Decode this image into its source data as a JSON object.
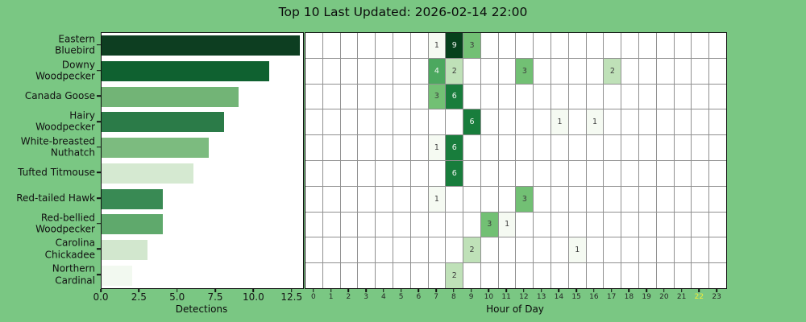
{
  "title": "Top 10 Last Updated: 2026-02-14 22:00",
  "colors": {
    "background": "#7AC783",
    "plot_background": "#ffffff",
    "axis_spine": "#111111",
    "grid_line": "#909090",
    "tick_label": "#161616",
    "current_hour_highlight": "#f0ec3a",
    "cell_text_dark": "#3d3d3d",
    "cell_text_light": "#f2f7f2"
  },
  "chart_data": [
    {
      "type": "bar",
      "orientation": "horizontal",
      "xlabel": "Detections",
      "xlim": [
        0,
        13.2
      ],
      "xticks": [
        "0.0",
        "2.5",
        "5.0",
        "7.5",
        "10.0",
        "12.5"
      ],
      "xtick_values": [
        0,
        2.5,
        5,
        7.5,
        10,
        12.5
      ],
      "categories": [
        "Eastern Bluebird",
        "Downy Woodpecker",
        "Canada Goose",
        "Hairy Woodpecker",
        "White-breasted Nuthatch",
        "Tufted Titmouse",
        "Red-tailed Hawk",
        "Red-bellied Woodpecker",
        "Carolina Chickadee",
        "Northern Cardinal"
      ],
      "category_label_lines": [
        [
          "Eastern",
          "Bluebird"
        ],
        [
          "Downy",
          "Woodpecker"
        ],
        [
          "Canada Goose"
        ],
        [
          "Hairy",
          "Woodpecker"
        ],
        [
          "White-breasted",
          "Nuthatch"
        ],
        [
          "Tufted Titmouse"
        ],
        [
          "Red-tailed Hawk"
        ],
        [
          "Red-bellied",
          "Woodpecker"
        ],
        [
          "Carolina",
          "Chickadee"
        ],
        [
          "Northern",
          "Cardinal"
        ]
      ],
      "values": [
        13,
        11,
        9,
        8,
        7,
        6,
        4,
        4,
        3,
        2
      ],
      "bar_colors": [
        "#0d3e21",
        "#0f6130",
        "#72b476",
        "#2b7b48",
        "#7cbb7f",
        "#d5e9d1",
        "#398a54",
        "#5fa96c",
        "#d2e7ce",
        "#f2f9f0"
      ]
    },
    {
      "type": "heatmap",
      "xlabel": "Hour of Day",
      "hours": [
        "0",
        "1",
        "2",
        "3",
        "4",
        "5",
        "6",
        "7",
        "8",
        "9",
        "10",
        "11",
        "12",
        "13",
        "14",
        "15",
        "16",
        "17",
        "18",
        "19",
        "20",
        "21",
        "22",
        "23"
      ],
      "highlighted_hour": "22",
      "rows": [
        "Eastern Bluebird",
        "Downy Woodpecker",
        "Canada Goose",
        "Hairy Woodpecker",
        "White-breasted Nuthatch",
        "Tufted Titmouse",
        "Red-tailed Hawk",
        "Red-bellied Woodpecker",
        "Carolina Chickadee",
        "Northern Cardinal"
      ],
      "cells": [
        {
          "row": 0,
          "hour": 7,
          "value": 1
        },
        {
          "row": 0,
          "hour": 8,
          "value": 9
        },
        {
          "row": 0,
          "hour": 9,
          "value": 3
        },
        {
          "row": 1,
          "hour": 7,
          "value": 4
        },
        {
          "row": 1,
          "hour": 8,
          "value": 2
        },
        {
          "row": 1,
          "hour": 12,
          "value": 3
        },
        {
          "row": 1,
          "hour": 17,
          "value": 2
        },
        {
          "row": 2,
          "hour": 7,
          "value": 3
        },
        {
          "row": 2,
          "hour": 8,
          "value": 6
        },
        {
          "row": 3,
          "hour": 9,
          "value": 6
        },
        {
          "row": 3,
          "hour": 14,
          "value": 1
        },
        {
          "row": 3,
          "hour": 16,
          "value": 1
        },
        {
          "row": 4,
          "hour": 7,
          "value": 1
        },
        {
          "row": 4,
          "hour": 8,
          "value": 6
        },
        {
          "row": 5,
          "hour": 8,
          "value": 6
        },
        {
          "row": 6,
          "hour": 7,
          "value": 1
        },
        {
          "row": 6,
          "hour": 12,
          "value": 3
        },
        {
          "row": 7,
          "hour": 10,
          "value": 3
        },
        {
          "row": 7,
          "hour": 11,
          "value": 1
        },
        {
          "row": 8,
          "hour": 9,
          "value": 2
        },
        {
          "row": 8,
          "hour": 15,
          "value": 1
        },
        {
          "row": 9,
          "hour": 8,
          "value": 2
        }
      ],
      "value_colors": {
        "1": "#f5faf2",
        "2": "#bfe1b8",
        "3": "#72c074",
        "4": "#4ca85f",
        "6": "#187d3c",
        "9": "#06411c"
      },
      "white_text_min_value": 4
    }
  ]
}
